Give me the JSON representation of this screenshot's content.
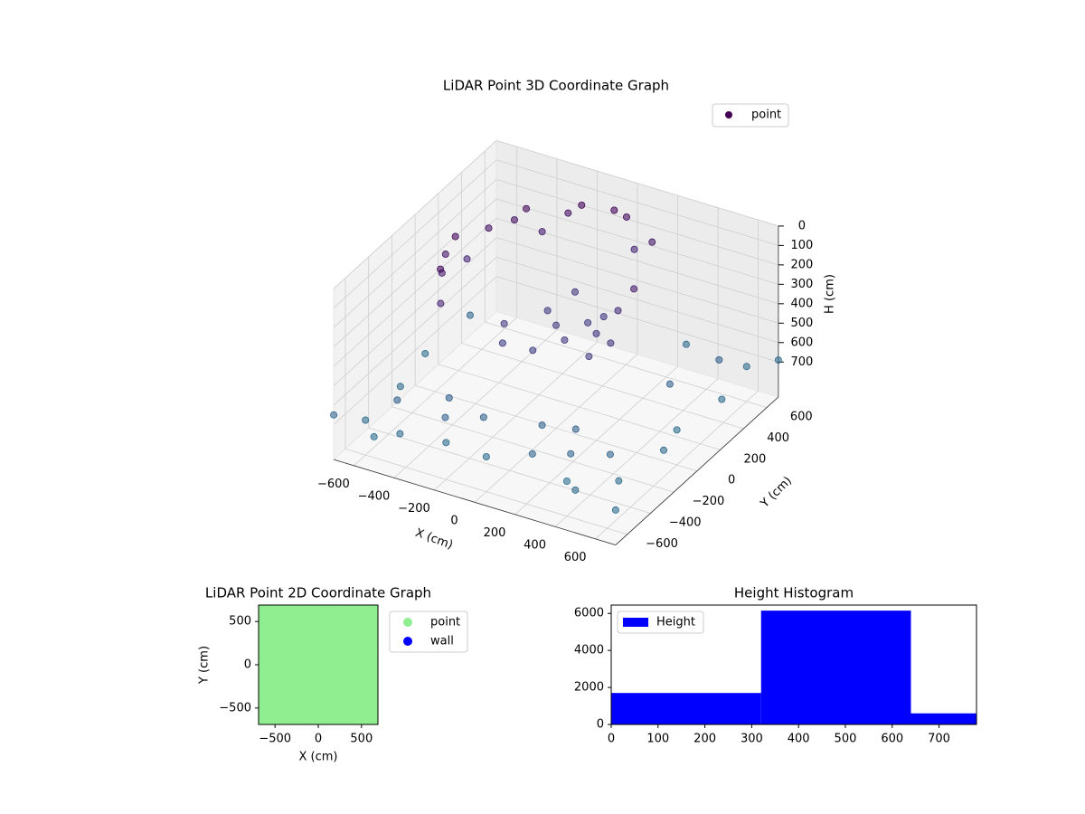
{
  "chart_data": [
    {
      "type": "scatter3d",
      "title": "LiDAR Point 3D Coordinate Graph",
      "xlabel": "X (cm)",
      "ylabel": "Y (cm)",
      "zlabel": "H (cm)",
      "xlim": [
        -700,
        700
      ],
      "ylim": [
        -700,
        700
      ],
      "zlim": [
        0,
        880
      ],
      "zinvert": true,
      "xticks": [
        {
          "value": -600,
          "label": "−600"
        },
        {
          "value": -400,
          "label": "−400"
        },
        {
          "value": -200,
          "label": "−200"
        },
        0,
        200,
        400,
        600
      ],
      "yticks": [
        {
          "value": -600,
          "label": "−600"
        },
        {
          "value": -400,
          "label": "−400"
        },
        {
          "value": -200,
          "label": "−200"
        },
        0,
        200,
        400,
        600
      ],
      "zticks": [
        0,
        100,
        200,
        300,
        400,
        500,
        600,
        700
      ],
      "cmap": "viridis",
      "legend": "upper right",
      "grid": true,
      "series": [
        {
          "name": "point",
          "color": "#440154",
          "x": [
            -500,
            -450,
            -350,
            -200,
            0,
            200,
            -480,
            -400,
            -500,
            -300,
            100,
            -430,
            300,
            250,
            -520,
            -380,
            -150,
            50,
            0,
            100,
            -100,
            200,
            -200,
            0,
            150,
            -150,
            250,
            -50,
            300,
            100,
            -600,
            -400,
            -200,
            0,
            200,
            400,
            600,
            650,
            600,
            650,
            600,
            300,
            -600,
            -650,
            -600,
            -500,
            500,
            -300,
            300,
            -100,
            450,
            550,
            -700,
            700,
            700,
            500,
            -500,
            -250,
            350,
            150
          ],
          "y": [
            0,
            200,
            350,
            450,
            500,
            480,
            -150,
            -300,
            100,
            400,
            500,
            -250,
            150,
            100,
            -50,
            300,
            480,
            520,
            0,
            -100,
            100,
            0,
            -100,
            -200,
            150,
            -200,
            -150,
            250,
            -50,
            100,
            -600,
            -650,
            -600,
            -600,
            -550,
            -600,
            -500,
            -200,
            0,
            300,
            600,
            600,
            -300,
            0,
            300,
            -500,
            -400,
            -400,
            -350,
            -450,
            200,
            450,
            -700,
            -700,
            700,
            -700,
            -700,
            -520,
            -480,
            -380
          ],
          "h": [
            50,
            100,
            50,
            80,
            30,
            120,
            150,
            200,
            220,
            180,
            200,
            60,
            150,
            250,
            120,
            90,
            40,
            60,
            350,
            340,
            360,
            330,
            350,
            370,
            340,
            380,
            350,
            330,
            320,
            360,
            700,
            680,
            690,
            700,
            650,
            700,
            690,
            680,
            700,
            690,
            700,
            680,
            690,
            700,
            650,
            620,
            640,
            600,
            600,
            610,
            620,
            600,
            650,
            700,
            690,
            660,
            700,
            620,
            640,
            610
          ]
        }
      ]
    },
    {
      "type": "scatter",
      "title": "LiDAR Point 2D Coordinate Graph",
      "xlabel": "X (cm)",
      "ylabel": "Y (cm)",
      "xlim": [
        -690,
        690
      ],
      "ylim": [
        -690,
        690
      ],
      "xticks": [
        {
          "value": -500,
          "label": "−500"
        },
        0,
        500
      ],
      "yticks": [
        {
          "value": -500,
          "label": "−500"
        },
        0,
        500
      ],
      "legend": "outside right",
      "series": [
        {
          "name": "point",
          "color": "#90ee90",
          "x": [
            -560,
            -280,
            0,
            280,
            560,
            -560,
            -280,
            0,
            280,
            560,
            -560,
            -280,
            0,
            280,
            560,
            -560,
            -280,
            0,
            280,
            560,
            -560,
            -280,
            0,
            280,
            560
          ],
          "y": [
            -560,
            -560,
            -560,
            -560,
            -560,
            -280,
            -280,
            -280,
            -280,
            -280,
            0,
            0,
            0,
            0,
            0,
            280,
            280,
            280,
            280,
            280,
            560,
            560,
            560,
            560,
            560
          ]
        },
        {
          "name": "wall",
          "color": "#0000ff",
          "x": [],
          "y": []
        }
      ]
    },
    {
      "type": "histogram",
      "title": "Height Histogram",
      "bins": [
        0,
        320,
        640,
        780
      ],
      "counts": [
        1700,
        6150,
        600
      ],
      "name": "Height",
      "color": "#0000ff",
      "legend": "upper left",
      "xlim": [
        0,
        780
      ],
      "ylim": [
        0,
        6450
      ],
      "xticks": [
        0,
        100,
        200,
        300,
        400,
        500,
        600,
        700
      ],
      "yticks": [
        0,
        2000,
        4000,
        6000
      ]
    }
  ]
}
